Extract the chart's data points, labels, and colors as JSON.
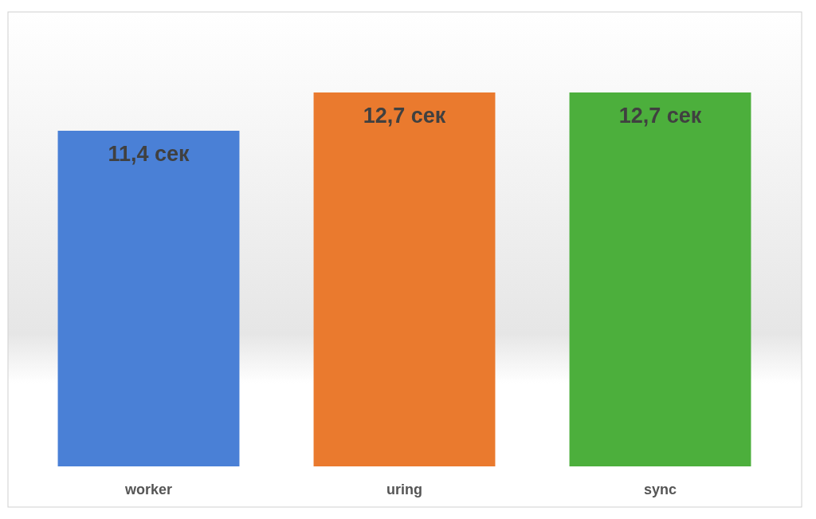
{
  "chart_data": {
    "type": "bar",
    "categories": [
      "worker",
      "uring",
      "sync"
    ],
    "values": [
      11.4,
      12.7,
      12.7
    ],
    "colors": [
      "#4a80d6",
      "#ea7a2e",
      "#4caf3c"
    ],
    "value_labels": [
      "11,4 сек",
      "12,7 сек",
      "12,7 сек"
    ]
  }
}
